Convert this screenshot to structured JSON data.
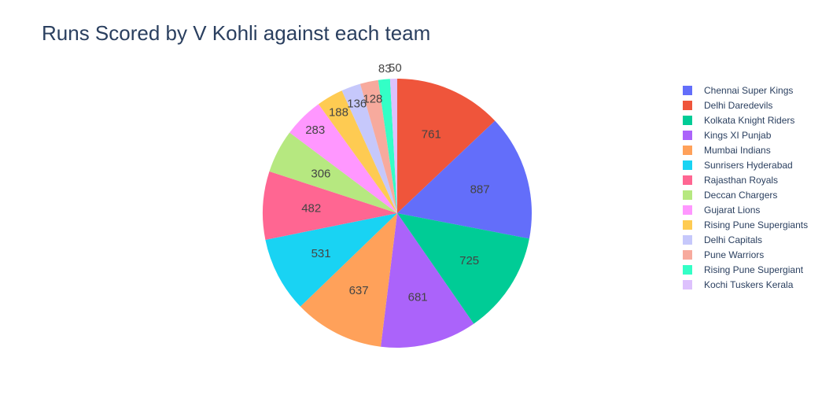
{
  "chart_data": {
    "type": "pie",
    "title": "Runs Scored by V Kohli against each team",
    "legend_position": "right",
    "direction": "clockwise",
    "labels": [
      "Chennai Super Kings",
      "Delhi Daredevils",
      "Kolkata Knight Riders",
      "Kings XI Punjab",
      "Mumbai Indians",
      "Sunrisers Hyderabad",
      "Rajasthan Royals",
      "Deccan Chargers",
      "Gujarat Lions",
      "Rising Pune Supergiants",
      "Delhi Capitals",
      "Pune Warriors",
      "Rising Pune Supergiant",
      "Kochi Tuskers Kerala"
    ],
    "values": [
      887,
      761,
      725,
      681,
      637,
      531,
      482,
      306,
      283,
      188,
      136,
      128,
      83,
      50
    ],
    "colors": [
      "#636efa",
      "#EF553B",
      "#00cc96",
      "#ab63fa",
      "#FFA15A",
      "#19d3f3",
      "#FF6692",
      "#B6E880",
      "#FF97FF",
      "#FECB52",
      "#c6c8fb",
      "#f7aa9d",
      "#33ffc6",
      "#ddc1fd"
    ],
    "plot_order": [
      1,
      0,
      2,
      3,
      4,
      5,
      6,
      7,
      8,
      9,
      10,
      11,
      12,
      13
    ]
  }
}
